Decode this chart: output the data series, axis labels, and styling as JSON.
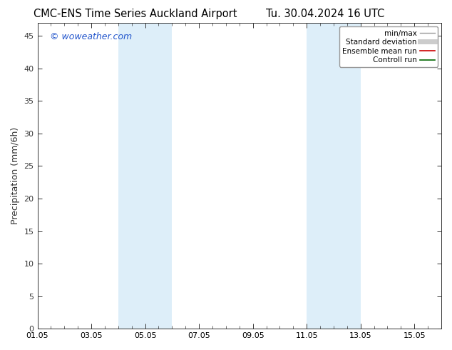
{
  "title_left": "CMC-ENS Time Series Auckland Airport",
  "title_right": "Tu. 30.04.2024 16 UTC",
  "ylabel": "Precipitation (mm/6h)",
  "watermark": "© woweather.com",
  "ylim": [
    0,
    47
  ],
  "yticks": [
    0,
    5,
    10,
    15,
    20,
    25,
    30,
    35,
    40,
    45
  ],
  "xtick_positions": [
    1,
    3,
    5,
    7,
    9,
    11,
    13,
    15
  ],
  "xtick_labels": [
    "01.05",
    "03.05",
    "05.05",
    "07.05",
    "09.05",
    "11.05",
    "13.05",
    "15.05"
  ],
  "xlim": [
    1,
    16
  ],
  "shaded_regions": [
    {
      "xstart": 4.0,
      "xend": 4.5,
      "color": "#ddeef9"
    },
    {
      "xstart": 4.5,
      "xend": 6.0,
      "color": "#ddeef9"
    },
    {
      "xstart": 11.0,
      "xend": 12.0,
      "color": "#ddeef9"
    },
    {
      "xstart": 12.0,
      "xend": 13.0,
      "color": "#ddeef9"
    }
  ],
  "legend_entries": [
    {
      "label": "min/max",
      "color": "#999999",
      "lw": 1.0
    },
    {
      "label": "Standard deviation",
      "color": "#cccccc",
      "lw": 5
    },
    {
      "label": "Ensemble mean run",
      "color": "#cc0000",
      "lw": 1.2
    },
    {
      "label": "Controll run",
      "color": "#006600",
      "lw": 1.2
    }
  ],
  "bg_color": "#ffffff",
  "spine_color": "#333333",
  "tick_color": "#333333",
  "watermark_color": "#2255cc",
  "font_size_title": 10.5,
  "font_size_axis": 9,
  "font_size_tick": 8,
  "font_size_legend": 7.5,
  "font_size_watermark": 9
}
